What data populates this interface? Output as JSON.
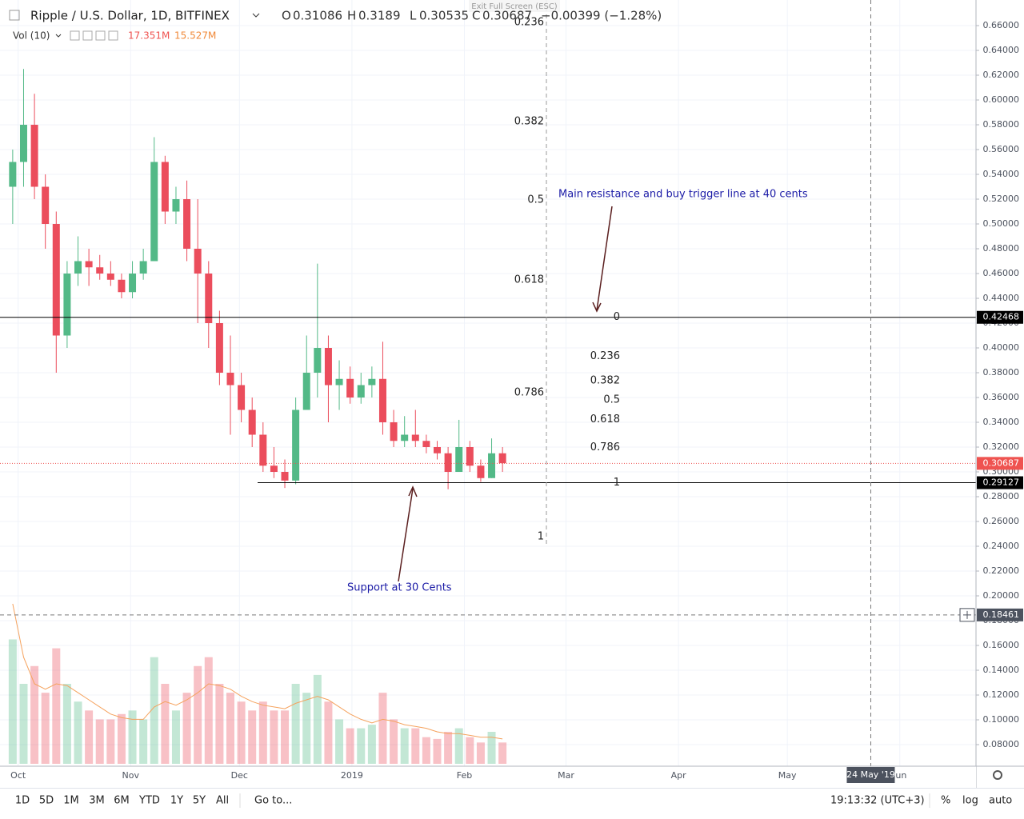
{
  "header": {
    "symbol": "Ripple / U.S. Dollar, 1D, BITFINEX",
    "open_label": "O",
    "open": 0.31086,
    "high_label": "H",
    "high": 0.3189,
    "low_label": "L",
    "low": 0.30535,
    "close_label": "C",
    "close": 0.30687,
    "change": "−0.00399 (−1.28%)",
    "volume_label": "Vol (10)",
    "volume": "17.351M",
    "volume_ma": "15.527M",
    "fullscreen_hint": "Exit Full Screen (ESC)"
  },
  "price_axis": {
    "ylim": [
      0.06258,
      0.68065
    ],
    "ticks": [
      {
        "value": 0.66,
        "label": "0.66000"
      },
      {
        "value": 0.64,
        "label": "0.64000"
      },
      {
        "value": 0.62,
        "label": "0.62000"
      },
      {
        "value": 0.6,
        "label": "0.60000"
      },
      {
        "value": 0.58,
        "label": "0.58000"
      },
      {
        "value": 0.56,
        "label": "0.56000"
      },
      {
        "value": 0.54,
        "label": "0.54000"
      },
      {
        "value": 0.52,
        "label": "0.52000"
      },
      {
        "value": 0.5,
        "label": "0.50000"
      },
      {
        "value": 0.48,
        "label": "0.48000"
      },
      {
        "value": 0.46,
        "label": "0.46000"
      },
      {
        "value": 0.44,
        "label": "0.44000"
      },
      {
        "value": 0.42,
        "label": "0.42000"
      },
      {
        "value": 0.4,
        "label": "0.40000"
      },
      {
        "value": 0.38,
        "label": "0.38000"
      },
      {
        "value": 0.36,
        "label": "0.36000"
      },
      {
        "value": 0.34,
        "label": "0.34000"
      },
      {
        "value": 0.32,
        "label": "0.32000"
      },
      {
        "value": 0.3,
        "label": "0.30000"
      },
      {
        "value": 0.28,
        "label": "0.28000"
      },
      {
        "value": 0.26,
        "label": "0.26000"
      },
      {
        "value": 0.24,
        "label": "0.24000"
      },
      {
        "value": 0.22,
        "label": "0.22000"
      },
      {
        "value": 0.2,
        "label": "0.20000"
      },
      {
        "value": 0.18,
        "label": "0.18000"
      },
      {
        "value": 0.16,
        "label": "0.16000"
      },
      {
        "value": 0.14,
        "label": "0.14000"
      },
      {
        "value": 0.12,
        "label": "0.12000"
      },
      {
        "value": 0.1,
        "label": "0.10000"
      },
      {
        "value": 0.08,
        "label": "0.08000"
      }
    ]
  },
  "time_axis": {
    "xlim": [
      "2018-09-26",
      "2019-06-22"
    ],
    "ticks": [
      {
        "date": "2018-10-01",
        "label": "Oct"
      },
      {
        "date": "2018-11-01",
        "label": "Nov"
      },
      {
        "date": "2018-12-01",
        "label": "Dec"
      },
      {
        "date": "2019-01-01",
        "label": "2019"
      },
      {
        "date": "2019-02-01",
        "label": "Feb"
      },
      {
        "date": "2019-03-01",
        "label": "Mar"
      },
      {
        "date": "2019-04-01",
        "label": "Apr"
      },
      {
        "date": "2019-05-01",
        "label": "May"
      },
      {
        "date": "2019-06-01",
        "label": "Jun"
      }
    ]
  },
  "candles": [
    {
      "date": "2018-09-28",
      "open": 0.53,
      "high": 0.56,
      "low": 0.5,
      "close": 0.55,
      "volume": 70,
      "volume_ma": 90
    },
    {
      "date": "2018-10-01",
      "open": 0.55,
      "high": 0.625,
      "low": 0.53,
      "close": 0.58,
      "volume": 45,
      "volume_ma": 60
    },
    {
      "date": "2018-10-04",
      "open": 0.58,
      "high": 0.605,
      "low": 0.52,
      "close": 0.53,
      "volume": 55,
      "volume_ma": 45
    },
    {
      "date": "2018-10-07",
      "open": 0.53,
      "high": 0.54,
      "low": 0.48,
      "close": 0.5,
      "volume": 40,
      "volume_ma": 42
    },
    {
      "date": "2018-10-10",
      "open": 0.5,
      "high": 0.51,
      "low": 0.38,
      "close": 0.41,
      "volume": 65,
      "volume_ma": 45
    },
    {
      "date": "2018-10-13",
      "open": 0.41,
      "high": 0.47,
      "low": 0.4,
      "close": 0.46,
      "volume": 45,
      "volume_ma": 44
    },
    {
      "date": "2018-10-16",
      "open": 0.46,
      "high": 0.49,
      "low": 0.45,
      "close": 0.47,
      "volume": 35,
      "volume_ma": 40
    },
    {
      "date": "2018-10-19",
      "open": 0.47,
      "high": 0.48,
      "low": 0.45,
      "close": 0.465,
      "volume": 30,
      "volume_ma": 36
    },
    {
      "date": "2018-10-22",
      "open": 0.465,
      "high": 0.475,
      "low": 0.455,
      "close": 0.46,
      "volume": 25,
      "volume_ma": 32
    },
    {
      "date": "2018-10-25",
      "open": 0.46,
      "high": 0.47,
      "low": 0.45,
      "close": 0.455,
      "volume": 25,
      "volume_ma": 28
    },
    {
      "date": "2018-10-28",
      "open": 0.455,
      "high": 0.46,
      "low": 0.44,
      "close": 0.445,
      "volume": 28,
      "volume_ma": 26
    },
    {
      "date": "2018-10-31",
      "open": 0.445,
      "high": 0.47,
      "low": 0.44,
      "close": 0.46,
      "volume": 30,
      "volume_ma": 25
    },
    {
      "date": "2018-11-03",
      "open": 0.46,
      "high": 0.48,
      "low": 0.455,
      "close": 0.47,
      "volume": 25,
      "volume_ma": 25
    },
    {
      "date": "2018-11-06",
      "open": 0.47,
      "high": 0.57,
      "low": 0.47,
      "close": 0.55,
      "volume": 60,
      "volume_ma": 32
    },
    {
      "date": "2018-11-09",
      "open": 0.55,
      "high": 0.555,
      "low": 0.5,
      "close": 0.51,
      "volume": 45,
      "volume_ma": 35
    },
    {
      "date": "2018-11-12",
      "open": 0.51,
      "high": 0.53,
      "low": 0.5,
      "close": 0.52,
      "volume": 30,
      "volume_ma": 33
    },
    {
      "date": "2018-11-15",
      "open": 0.52,
      "high": 0.535,
      "low": 0.47,
      "close": 0.48,
      "volume": 40,
      "volume_ma": 36
    },
    {
      "date": "2018-11-18",
      "open": 0.48,
      "high": 0.52,
      "low": 0.42,
      "close": 0.46,
      "volume": 55,
      "volume_ma": 40
    },
    {
      "date": "2018-11-21",
      "open": 0.46,
      "high": 0.47,
      "low": 0.4,
      "close": 0.42,
      "volume": 60,
      "volume_ma": 45
    },
    {
      "date": "2018-11-24",
      "open": 0.42,
      "high": 0.43,
      "low": 0.37,
      "close": 0.38,
      "volume": 45,
      "volume_ma": 44
    },
    {
      "date": "2018-11-27",
      "open": 0.38,
      "high": 0.41,
      "low": 0.33,
      "close": 0.37,
      "volume": 40,
      "volume_ma": 42
    },
    {
      "date": "2018-11-30",
      "open": 0.37,
      "high": 0.38,
      "low": 0.34,
      "close": 0.35,
      "volume": 35,
      "volume_ma": 38
    },
    {
      "date": "2018-12-03",
      "open": 0.35,
      "high": 0.36,
      "low": 0.32,
      "close": 0.33,
      "volume": 30,
      "volume_ma": 35
    },
    {
      "date": "2018-12-06",
      "open": 0.33,
      "high": 0.34,
      "low": 0.3,
      "close": 0.305,
      "volume": 35,
      "volume_ma": 33
    },
    {
      "date": "2018-12-09",
      "open": 0.305,
      "high": 0.32,
      "low": 0.295,
      "close": 0.3,
      "volume": 30,
      "volume_ma": 32
    },
    {
      "date": "2018-12-12",
      "open": 0.3,
      "high": 0.31,
      "low": 0.287,
      "close": 0.293,
      "volume": 30,
      "volume_ma": 31
    },
    {
      "date": "2018-12-15",
      "open": 0.293,
      "high": 0.36,
      "low": 0.29,
      "close": 0.35,
      "volume": 45,
      "volume_ma": 34
    },
    {
      "date": "2018-12-18",
      "open": 0.35,
      "high": 0.41,
      "low": 0.35,
      "close": 0.38,
      "volume": 40,
      "volume_ma": 36
    },
    {
      "date": "2018-12-21",
      "open": 0.38,
      "high": 0.468,
      "low": 0.36,
      "close": 0.4,
      "volume": 50,
      "volume_ma": 38
    },
    {
      "date": "2018-12-24",
      "open": 0.4,
      "high": 0.41,
      "low": 0.34,
      "close": 0.37,
      "volume": 35,
      "volume_ma": 36
    },
    {
      "date": "2018-12-27",
      "open": 0.37,
      "high": 0.39,
      "low": 0.35,
      "close": 0.375,
      "volume": 25,
      "volume_ma": 32
    },
    {
      "date": "2018-12-30",
      "open": 0.375,
      "high": 0.385,
      "low": 0.355,
      "close": 0.36,
      "volume": 20,
      "volume_ma": 28
    },
    {
      "date": "2019-01-02",
      "open": 0.36,
      "high": 0.38,
      "low": 0.355,
      "close": 0.37,
      "volume": 20,
      "volume_ma": 25
    },
    {
      "date": "2019-01-05",
      "open": 0.37,
      "high": 0.385,
      "low": 0.36,
      "close": 0.375,
      "volume": 22,
      "volume_ma": 23
    },
    {
      "date": "2019-01-08",
      "open": 0.375,
      "high": 0.405,
      "low": 0.33,
      "close": 0.34,
      "volume": 40,
      "volume_ma": 25
    },
    {
      "date": "2019-01-11",
      "open": 0.34,
      "high": 0.35,
      "low": 0.32,
      "close": 0.325,
      "volume": 25,
      "volume_ma": 24
    },
    {
      "date": "2019-01-14",
      "open": 0.325,
      "high": 0.345,
      "low": 0.32,
      "close": 0.33,
      "volume": 20,
      "volume_ma": 22
    },
    {
      "date": "2019-01-17",
      "open": 0.33,
      "high": 0.35,
      "low": 0.32,
      "close": 0.325,
      "volume": 20,
      "volume_ma": 21
    },
    {
      "date": "2019-01-20",
      "open": 0.325,
      "high": 0.33,
      "low": 0.315,
      "close": 0.32,
      "volume": 15,
      "volume_ma": 20
    },
    {
      "date": "2019-01-23",
      "open": 0.32,
      "high": 0.325,
      "low": 0.31,
      "close": 0.315,
      "volume": 14,
      "volume_ma": 18
    },
    {
      "date": "2019-01-26",
      "open": 0.315,
      "high": 0.32,
      "low": 0.286,
      "close": 0.3,
      "volume": 18,
      "volume_ma": 17
    },
    {
      "date": "2019-01-29",
      "open": 0.3,
      "high": 0.342,
      "low": 0.3,
      "close": 0.32,
      "volume": 20,
      "volume_ma": 17
    },
    {
      "date": "2019-02-01",
      "open": 0.32,
      "high": 0.325,
      "low": 0.3,
      "close": 0.305,
      "volume": 15,
      "volume_ma": 16
    },
    {
      "date": "2019-02-04",
      "open": 0.305,
      "high": 0.31,
      "low": 0.292,
      "close": 0.295,
      "volume": 12,
      "volume_ma": 15
    },
    {
      "date": "2019-02-07",
      "open": 0.295,
      "high": 0.327,
      "low": 0.295,
      "close": 0.315,
      "volume": 18,
      "volume_ma": 15
    },
    {
      "date": "2019-02-10",
      "open": 0.315,
      "high": 0.32,
      "low": 0.3,
      "close": 0.307,
      "volume": 12,
      "volume_ma": 14
    }
  ],
  "levels": {
    "resistance": {
      "value": 0.42468,
      "label": "0.42468"
    },
    "support": {
      "value": 0.29127,
      "label": "0.29127",
      "from": "2018-12-06"
    },
    "last_price": {
      "value": 0.30687,
      "label": "0.30687"
    },
    "crosshair": {
      "price": 0.18461,
      "price_label": "0.18461",
      "date": "2019-05-24",
      "date_label": "24 May '19"
    }
  },
  "fib_sets": [
    {
      "levels": [
        {
          "label": "0.236",
          "price": 0.6626
        },
        {
          "label": "0.382",
          "price": 0.5826
        },
        {
          "label": "0.5",
          "price": 0.5194
        },
        {
          "label": "0.618",
          "price": 0.4548
        },
        {
          "label": "0.786",
          "price": 0.3639
        },
        {
          "label": "1",
          "price": 0.2477
        }
      ]
    },
    {
      "levels": [
        {
          "label": "0",
          "price": 0.4247
        },
        {
          "label": "0.236",
          "price": 0.3932
        },
        {
          "label": "0.382",
          "price": 0.3737
        },
        {
          "label": "0.5",
          "price": 0.358
        },
        {
          "label": "0.618",
          "price": 0.3423
        },
        {
          "label": "0.786",
          "price": 0.3198
        },
        {
          "label": "1",
          "price": 0.2913
        }
      ]
    }
  ],
  "annotations": {
    "resistance_note": "Main resistance and buy trigger line at 40 cents",
    "support_note": "Support at 30 Cents"
  },
  "toolbar": {
    "ranges": [
      "1D",
      "5D",
      "1M",
      "3M",
      "6M",
      "YTD",
      "1Y",
      "5Y",
      "All"
    ],
    "goto": "Go to...",
    "clock": "19:13:32 (UTC+3)",
    "percent": "%",
    "log": "log",
    "auto": "auto"
  }
}
